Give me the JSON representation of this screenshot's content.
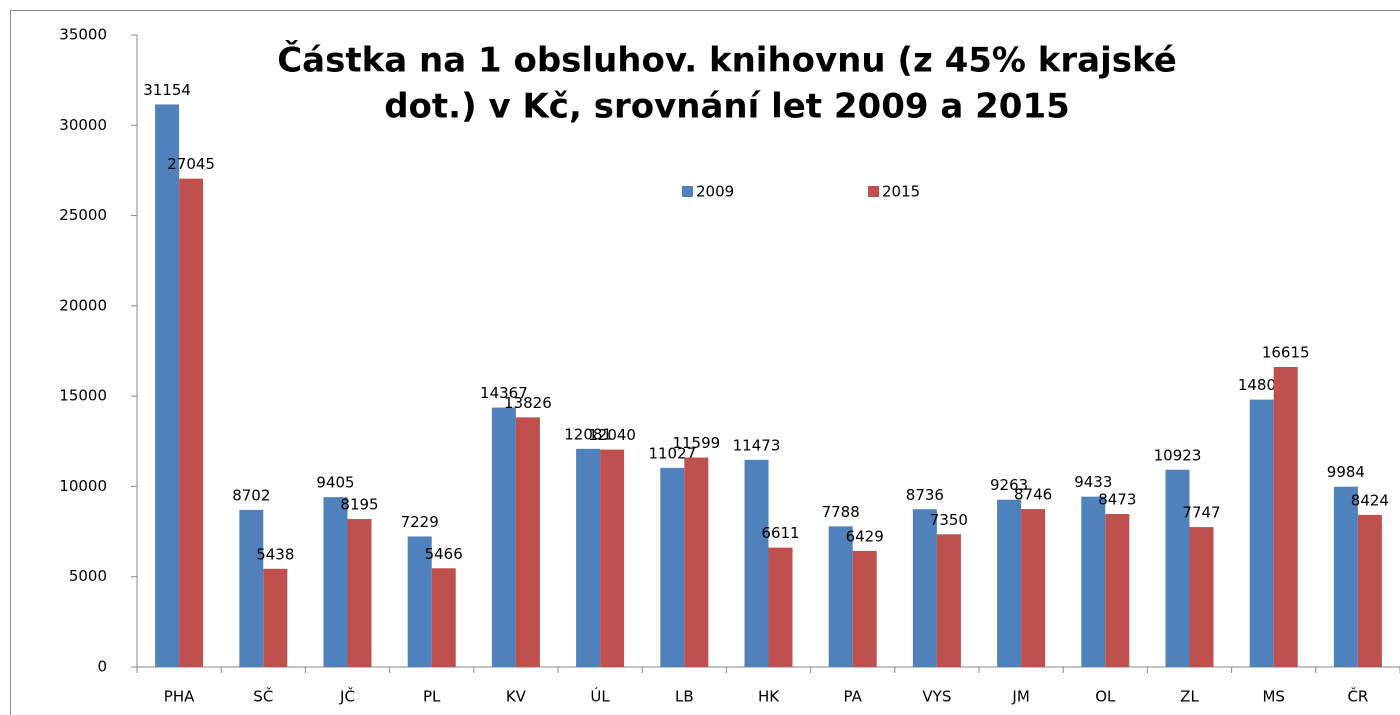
{
  "chart_data": {
    "type": "bar",
    "title": [
      "Částka na 1 obsluhov. knihovnu (z 45% krajské",
      "dot.) v Kč, srovnání let 2009 a 2015"
    ],
    "categories": [
      "PHA",
      "SČ",
      "JČ",
      "PL",
      "KV",
      "ÚL",
      "LB",
      "HK",
      "PA",
      "VYS",
      "JM",
      "OL",
      "ZL",
      "MS",
      "ČR"
    ],
    "series": [
      {
        "name": "2009",
        "color": "#4f81bd",
        "values": [
          31154,
          8702,
          9405,
          7229,
          14367,
          12081,
          11027,
          11473,
          7788,
          8736,
          9263,
          9433,
          10923,
          14809,
          9984
        ]
      },
      {
        "name": "2015",
        "color": "#c0504d",
        "values": [
          27045,
          5438,
          8195,
          5466,
          13826,
          12040,
          11599,
          6611,
          6429,
          7350,
          8746,
          8473,
          7747,
          16615,
          8424
        ]
      }
    ],
    "ylim": [
      0,
      35000
    ],
    "yticks": [
      0,
      5000,
      10000,
      15000,
      20000,
      25000,
      30000,
      35000
    ],
    "legend": "top"
  }
}
